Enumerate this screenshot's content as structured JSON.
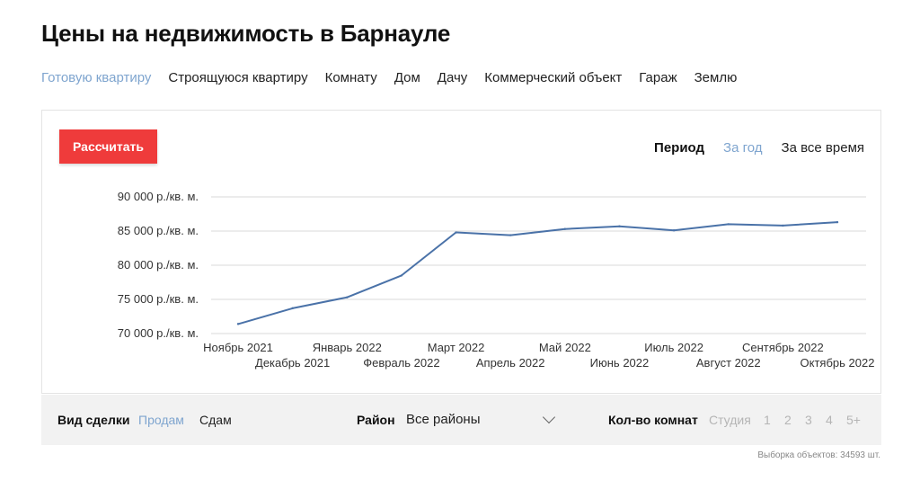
{
  "page": {
    "title": "Цены на недвижимость в Барнауле"
  },
  "property_types": [
    {
      "label": "Готовую квартиру",
      "active": true
    },
    {
      "label": "Строящуюся квартиру",
      "active": false
    },
    {
      "label": "Комнату",
      "active": false
    },
    {
      "label": "Дом",
      "active": false
    },
    {
      "label": "Дачу",
      "active": false
    },
    {
      "label": "Коммерческий объект",
      "active": false
    },
    {
      "label": "Гараж",
      "active": false
    },
    {
      "label": "Землю",
      "active": false
    }
  ],
  "actions": {
    "calculate_label": "Рассчитать"
  },
  "period": {
    "label": "Период",
    "options": [
      {
        "label": "За год",
        "active": true
      },
      {
        "label": "За все время",
        "active": false
      }
    ]
  },
  "colors": {
    "accent": "#7fa5cf",
    "button": "#ef3b3b",
    "line": "#4a72a8"
  },
  "chart_data": {
    "type": "line",
    "categories": [
      "Ноябрь 2021",
      "Декабрь 2021",
      "Январь 2022",
      "Февраль 2022",
      "Март 2022",
      "Апрель 2022",
      "Май 2022",
      "Июнь 2022",
      "Июль 2022",
      "Август 2022",
      "Сентябрь 2022",
      "Октябрь 2022"
    ],
    "series": [
      {
        "values": [
          71400,
          73700,
          75300,
          78500,
          84800,
          84400,
          85300,
          85700,
          85100,
          86000,
          85800,
          86300
        ]
      }
    ],
    "y_ticks": [
      {
        "value": 70000,
        "label": "70 000 р./кв. м."
      },
      {
        "value": 75000,
        "label": "75 000 р./кв. м."
      },
      {
        "value": 80000,
        "label": "80 000 р./кв. м."
      },
      {
        "value": 85000,
        "label": "85 000 р./кв. м."
      },
      {
        "value": 90000,
        "label": "90 000 р./кв. м."
      }
    ],
    "ylim": [
      70000,
      90000
    ],
    "grid": true
  },
  "filters": {
    "deal_label": "Вид сделки",
    "deal_options": [
      {
        "label": "Продам",
        "active": true
      },
      {
        "label": "Сдам",
        "active": false
      }
    ],
    "district_label": "Район",
    "district_value": "Все районы",
    "rooms_label": "Кол-во комнат",
    "rooms_options": [
      "Студия",
      "1",
      "2",
      "3",
      "4",
      "5+"
    ]
  },
  "footer": {
    "sample_text": "Выборка объектов: 34593 шт."
  }
}
